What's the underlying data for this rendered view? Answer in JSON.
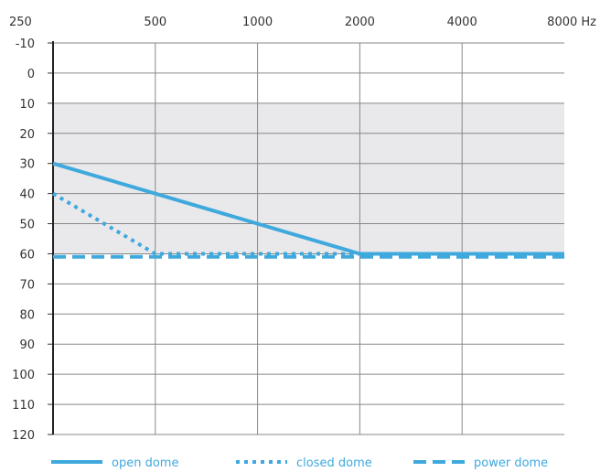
{
  "chart_data": {
    "type": "line",
    "x_scale": "log2",
    "x_ticks": [
      250,
      500,
      1000,
      2000,
      4000,
      8000
    ],
    "x_tick_labels": [
      "250",
      "500",
      "1000",
      "2000",
      "4000",
      "8000 Hz"
    ],
    "y_ticks": [
      -10,
      0,
      10,
      20,
      30,
      40,
      50,
      60,
      70,
      80,
      90,
      100,
      110,
      120
    ],
    "y_tick_labels": [
      "-10",
      "0",
      "10",
      "20",
      "30",
      "40",
      "50",
      "60",
      "70",
      "80",
      "90",
      "100",
      "110",
      "120"
    ],
    "ylim": [
      -10,
      120
    ],
    "y_inverted": true,
    "xlabel": "",
    "ylabel": "",
    "grid": true,
    "shaded_band": [
      10,
      60
    ],
    "legend_position": "bottom",
    "series": [
      {
        "name": "open dome",
        "style": "solid",
        "color": "#3fa9dd",
        "x": [
          250,
          2000,
          8000
        ],
        "y": [
          30,
          60,
          60
        ]
      },
      {
        "name": "closed dome",
        "style": "dotted",
        "color": "#3fa9dd",
        "x": [
          250,
          500,
          8000
        ],
        "y": [
          40,
          60,
          60
        ]
      },
      {
        "name": "power dome",
        "style": "dashed",
        "color": "#3fa9dd",
        "x": [
          250,
          8000
        ],
        "y": [
          61,
          61
        ]
      }
    ]
  }
}
